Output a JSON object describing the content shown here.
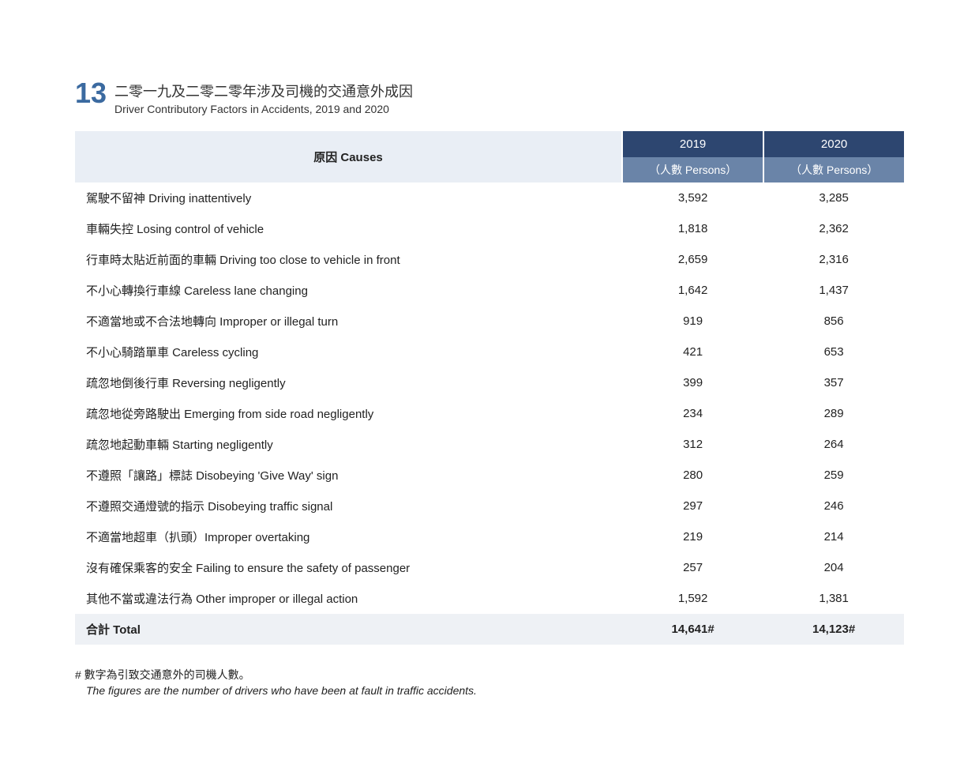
{
  "meta": {
    "table_number": "13",
    "title_zh": "二零一九及二零二零年涉及司機的交通意外成因",
    "title_en": "Driver Contributory Factors in Accidents, 2019 and 2020"
  },
  "table": {
    "causes_header": "原因  Causes",
    "year_cols": [
      "2019",
      "2020"
    ],
    "persons_label": "（人數 Persons）",
    "header_bg_light": "#e9eef5",
    "header_bg_year": "#2d4670",
    "header_bg_persons": "#6a84a8",
    "header_text_color": "#ffffff",
    "row_alt_bg": "#eef1f5",
    "rows": [
      {
        "cause": "駕駛不留神 Driving inattentively",
        "y2019": "3,592",
        "y2020": "3,285"
      },
      {
        "cause": "車輛失控 Losing control of vehicle",
        "y2019": "1,818",
        "y2020": "2,362"
      },
      {
        "cause": "行車時太貼近前面的車輛 Driving too close to vehicle in front",
        "y2019": "2,659",
        "y2020": "2,316"
      },
      {
        "cause": "不小心轉換行車線 Careless lane changing",
        "y2019": "1,642",
        "y2020": "1,437"
      },
      {
        "cause": "不適當地或不合法地轉向 Improper or illegal turn",
        "y2019": "919",
        "y2020": "856"
      },
      {
        "cause": "不小心騎踏單車 Careless cycling",
        "y2019": "421",
        "y2020": "653"
      },
      {
        "cause": "疏忽地倒後行車 Reversing negligently",
        "y2019": "399",
        "y2020": "357"
      },
      {
        "cause": "疏忽地從旁路駛出 Emerging from side road negligently",
        "y2019": "234",
        "y2020": "289"
      },
      {
        "cause": "疏忽地起動車輛 Starting negligently",
        "y2019": "312",
        "y2020": "264"
      },
      {
        "cause": "不遵照「讓路」標誌 Disobeying 'Give Way' sign",
        "y2019": "280",
        "y2020": "259"
      },
      {
        "cause": "不遵照交通燈號的指示 Disobeying traffic signal",
        "y2019": "297",
        "y2020": "246"
      },
      {
        "cause": "不適當地超車（扒頭）Improper overtaking",
        "y2019": "219",
        "y2020": "214"
      },
      {
        "cause": "沒有確保乘客的安全 Failing to ensure the safety of passenger",
        "y2019": "257",
        "y2020": "204"
      },
      {
        "cause": "其他不當或違法行為 Other improper or illegal action",
        "y2019": "1,592",
        "y2020": "1,381"
      }
    ],
    "total": {
      "label": "合計 Total",
      "y2019": "14,641#",
      "y2020": "14,123#"
    }
  },
  "footnotes": {
    "zh": "# 數字為引致交通意外的司機人數。",
    "en": "The figures are the number of drivers who have been at fault in traffic accidents."
  }
}
